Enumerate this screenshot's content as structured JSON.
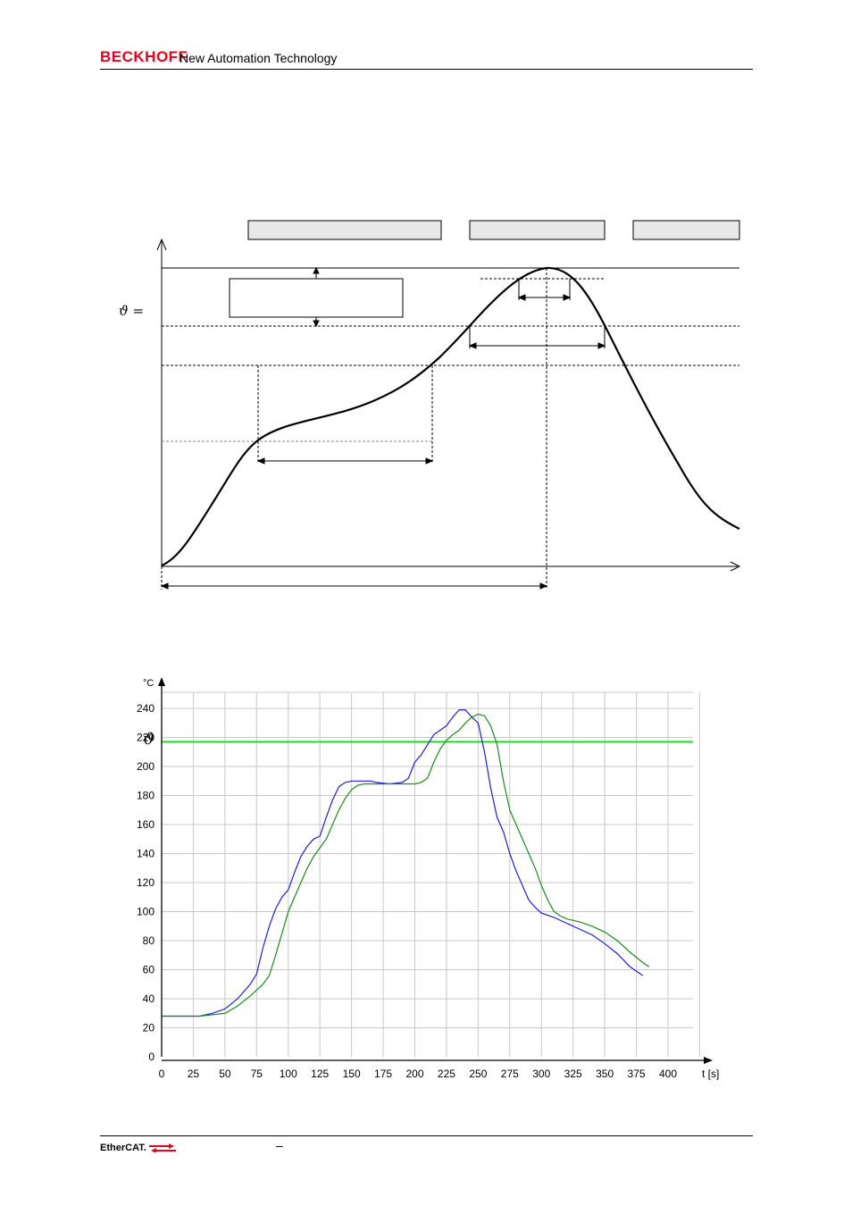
{
  "header": {
    "brand": "BECKHOFF",
    "tagline": "New Automation Technology"
  },
  "footer": {
    "logo_text_a": "Ether",
    "logo_text_b": "CAT.",
    "dash": "–"
  },
  "diagram1": {
    "theta_label": "ϑ  ="
  },
  "chart_data": {
    "type": "line",
    "ylabel": "°C",
    "xlabel": "t [s]",
    "overlay_symbol": "ϑ",
    "xlim": [
      0,
      400
    ],
    "ylim": [
      0,
      250
    ],
    "x_ticks": [
      0,
      25,
      50,
      75,
      100,
      125,
      150,
      175,
      200,
      225,
      250,
      275,
      300,
      325,
      350,
      375,
      400
    ],
    "y_ticks": [
      0,
      20,
      40,
      60,
      80,
      100,
      120,
      140,
      160,
      180,
      200,
      220,
      240
    ],
    "threshold": {
      "y": 217,
      "color": "#22dd22"
    },
    "grid": true,
    "series": [
      {
        "color": "#1f1fd6",
        "points": [
          [
            0,
            28
          ],
          [
            10,
            28
          ],
          [
            20,
            28
          ],
          [
            30,
            28
          ],
          [
            40,
            30
          ],
          [
            50,
            33
          ],
          [
            60,
            40
          ],
          [
            70,
            50
          ],
          [
            75,
            57
          ],
          [
            80,
            75
          ],
          [
            85,
            90
          ],
          [
            90,
            102
          ],
          [
            95,
            110
          ],
          [
            100,
            115
          ],
          [
            105,
            127
          ],
          [
            110,
            138
          ],
          [
            115,
            145
          ],
          [
            120,
            150
          ],
          [
            125,
            152
          ],
          [
            130,
            165
          ],
          [
            135,
            177
          ],
          [
            140,
            186
          ],
          [
            145,
            189
          ],
          [
            150,
            190
          ],
          [
            155,
            190
          ],
          [
            160,
            190
          ],
          [
            165,
            190
          ],
          [
            170,
            189
          ],
          [
            180,
            188
          ],
          [
            190,
            189
          ],
          [
            195,
            192
          ],
          [
            200,
            203
          ],
          [
            205,
            208
          ],
          [
            210,
            215
          ],
          [
            215,
            222
          ],
          [
            220,
            225
          ],
          [
            225,
            228
          ],
          [
            230,
            234
          ],
          [
            235,
            239
          ],
          [
            240,
            239
          ],
          [
            245,
            234
          ],
          [
            250,
            230
          ],
          [
            255,
            210
          ],
          [
            260,
            185
          ],
          [
            265,
            165
          ],
          [
            270,
            155
          ],
          [
            275,
            140
          ],
          [
            280,
            128
          ],
          [
            285,
            118
          ],
          [
            290,
            108
          ],
          [
            295,
            103
          ],
          [
            300,
            99
          ],
          [
            310,
            96
          ],
          [
            320,
            92
          ],
          [
            330,
            88
          ],
          [
            340,
            84
          ],
          [
            350,
            78
          ],
          [
            360,
            71
          ],
          [
            370,
            62
          ],
          [
            380,
            56
          ]
        ]
      },
      {
        "color": "#1e8a1e",
        "points": [
          [
            0,
            28
          ],
          [
            20,
            28
          ],
          [
            30,
            28
          ],
          [
            40,
            29
          ],
          [
            50,
            30
          ],
          [
            60,
            35
          ],
          [
            70,
            42
          ],
          [
            80,
            50
          ],
          [
            85,
            56
          ],
          [
            90,
            70
          ],
          [
            95,
            85
          ],
          [
            100,
            100
          ],
          [
            105,
            110
          ],
          [
            110,
            120
          ],
          [
            115,
            130
          ],
          [
            120,
            138
          ],
          [
            125,
            144
          ],
          [
            130,
            150
          ],
          [
            135,
            160
          ],
          [
            140,
            170
          ],
          [
            145,
            178
          ],
          [
            150,
            184
          ],
          [
            155,
            187
          ],
          [
            160,
            188
          ],
          [
            170,
            188
          ],
          [
            180,
            188
          ],
          [
            190,
            188
          ],
          [
            200,
            188
          ],
          [
            205,
            189
          ],
          [
            210,
            192
          ],
          [
            215,
            203
          ],
          [
            220,
            212
          ],
          [
            225,
            218
          ],
          [
            230,
            222
          ],
          [
            235,
            225
          ],
          [
            240,
            230
          ],
          [
            245,
            234
          ],
          [
            250,
            236
          ],
          [
            255,
            235
          ],
          [
            260,
            228
          ],
          [
            265,
            215
          ],
          [
            270,
            190
          ],
          [
            275,
            170
          ],
          [
            280,
            160
          ],
          [
            285,
            150
          ],
          [
            290,
            140
          ],
          [
            295,
            130
          ],
          [
            300,
            118
          ],
          [
            305,
            108
          ],
          [
            310,
            100
          ],
          [
            315,
            97
          ],
          [
            320,
            95
          ],
          [
            330,
            93
          ],
          [
            340,
            90
          ],
          [
            350,
            86
          ],
          [
            360,
            80
          ],
          [
            370,
            72
          ],
          [
            380,
            65
          ],
          [
            385,
            62
          ]
        ]
      }
    ]
  }
}
